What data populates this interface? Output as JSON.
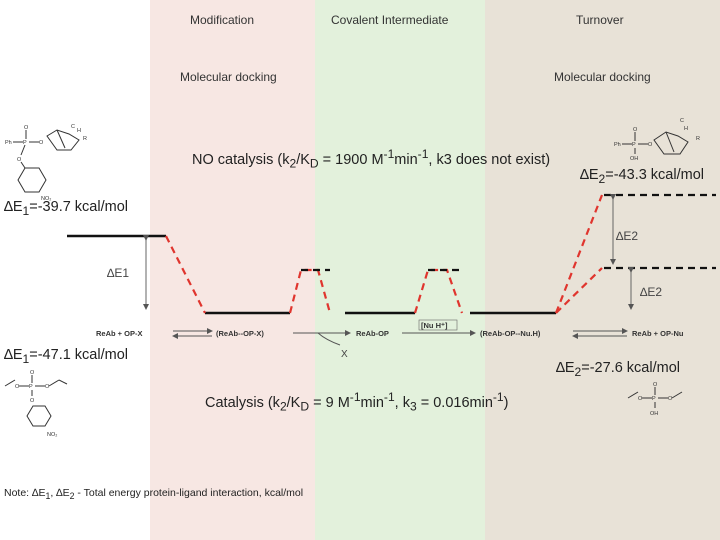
{
  "columns": {
    "modification": "Modification",
    "covalent": "Covalent Intermediate",
    "turnover": "Turnover"
  },
  "docking": {
    "left": "Molecular docking",
    "right": "Molecular docking"
  },
  "no_catalysis": {
    "prefix": "NO catalysis (k",
    "s1": "2",
    "mid1": "/K",
    "s2": "D",
    "mid2": " = 1900 M",
    "s3": "-1",
    "mid3": "min",
    "s4": "-1",
    "suffix": ", k3 does not exist)"
  },
  "catalysis": {
    "prefix": "Catalysis (k",
    "s1": "2",
    "mid1": "/K",
    "s2": "D",
    "mid2": " = 9 M",
    "s3": "-1",
    "mid3": "min",
    "s4": "-1",
    "mid4": ", k",
    "s5": "3",
    "mid5": " = 0.016min",
    "s6": "-1",
    "suffix": ")"
  },
  "energies": {
    "e1_top": {
      "sym": "∆E",
      "sub": "1",
      "val": "=-39.7 kcal/mol"
    },
    "e1_bottom": {
      "sym": "∆E",
      "sub": "1",
      "val": "=-47.1 kcal/mol"
    },
    "e2_top": {
      "sym": "∆E",
      "sub": "2",
      "val": "=-43.3 kcal/mol"
    },
    "e2_bottom": {
      "sym": "∆E",
      "sub": "2",
      "val": "=-27.6 kcal/mol"
    }
  },
  "diagram_labels": {
    "de1": "∆E1",
    "de2_upper": "∆E2",
    "de2_lower": "∆E2",
    "x_label": "X"
  },
  "states": {
    "s1": "ReAb + OP-X",
    "s2": "(ReAb--OP-X)",
    "s3": "ReAb-OP",
    "s4": "[Nu H⁺]",
    "s5": "(ReAb-OP--Nu.H)",
    "s6": "ReAb + OP-Nu"
  },
  "molecule_labels": {
    "ph": "Ph",
    "p": "P",
    "o": "O",
    "no2": "NO₂",
    "c": "C",
    "h": "H",
    "oh": "OH",
    "r": "R"
  },
  "note": {
    "prefix": "Note: ",
    "e1": "∆E",
    "s1": "1",
    "comma": ", ",
    "e2": "∆E",
    "s2": "2",
    "text": " - Total energy protein-ligand interaction, kcal/mol"
  }
}
